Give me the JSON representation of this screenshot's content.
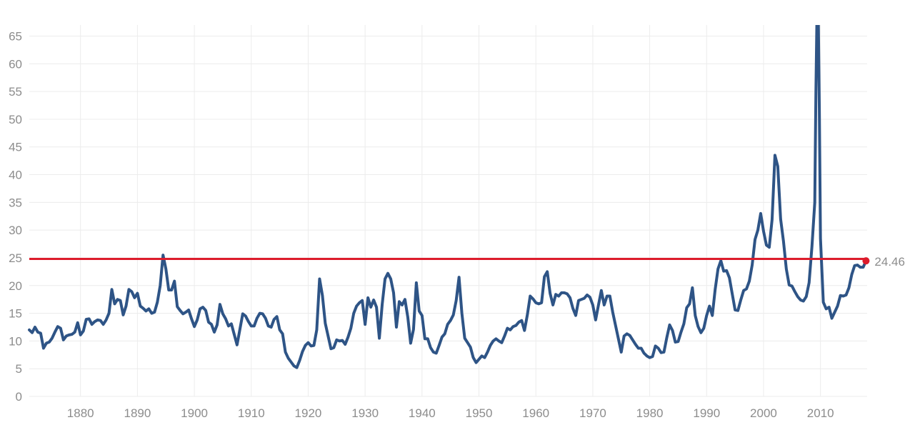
{
  "colors": {
    "series_line": "#2e5486",
    "reference_line": "#dd1c2c",
    "last_point": "#dd1c2c",
    "grid": "#ececec",
    "tick_text": "#8c8c8c",
    "background": "#ffffff"
  },
  "chart_data": {
    "type": "line",
    "title": "",
    "xlabel": "",
    "ylabel": "",
    "xlim": [
      1871,
      2018.2
    ],
    "ylim": [
      0,
      67
    ],
    "grid": true,
    "x_ticks": [
      1880,
      1890,
      1900,
      1910,
      1920,
      1930,
      1940,
      1950,
      1960,
      1970,
      1980,
      1990,
      2000,
      2010
    ],
    "x_tick_labels": [
      "1880",
      "1890",
      "1900",
      "1910",
      "1920",
      "1930",
      "1940",
      "1950",
      "1960",
      "1970",
      "1980",
      "1990",
      "2000",
      "2010"
    ],
    "y_ticks": [
      0,
      5,
      10,
      15,
      20,
      25,
      30,
      35,
      40,
      45,
      50,
      55,
      60,
      65
    ],
    "y_tick_labels": [
      "0",
      "5",
      "10",
      "15",
      "20",
      "25",
      "30",
      "35",
      "40",
      "45",
      "50",
      "55",
      "60",
      "65"
    ],
    "reference_line": {
      "y": 24.8
    },
    "last_value": {
      "x": 2018.0,
      "y": 24.46,
      "label": "24.46"
    },
    "series": [
      {
        "x": [
          1871.0,
          1871.5,
          1872.0,
          1872.5,
          1873.0,
          1873.5,
          1874.0,
          1874.5,
          1875.0,
          1875.5,
          1876.0,
          1876.5,
          1877.0,
          1877.5,
          1878.0,
          1878.5,
          1879.0,
          1879.5,
          1880.0,
          1880.5,
          1881.0,
          1881.5,
          1882.0,
          1882.5,
          1883.0,
          1883.5,
          1884.0,
          1884.5,
          1885.0,
          1885.5,
          1886.0,
          1886.5,
          1887.0,
          1887.5,
          1888.0,
          1888.5,
          1889.0,
          1889.5,
          1890.0,
          1890.5,
          1891.0,
          1891.5,
          1892.0,
          1892.5,
          1893.0,
          1893.5,
          1894.0,
          1894.5,
          1895.0,
          1895.5,
          1896.0,
          1896.5,
          1897.0,
          1897.5,
          1898.0,
          1898.5,
          1899.0,
          1899.5,
          1900.0,
          1900.5,
          1901.0,
          1901.5,
          1902.0,
          1902.5,
          1903.0,
          1903.5,
          1904.0,
          1904.5,
          1905.0,
          1905.5,
          1906.0,
          1906.5,
          1907.0,
          1907.5,
          1908.0,
          1908.5,
          1909.0,
          1909.5,
          1910.0,
          1910.5,
          1911.0,
          1911.5,
          1912.0,
          1912.5,
          1913.0,
          1913.5,
          1914.0,
          1914.5,
          1915.0,
          1915.5,
          1916.0,
          1916.5,
          1917.0,
          1917.5,
          1918.0,
          1918.5,
          1919.0,
          1919.5,
          1920.0,
          1920.5,
          1921.0,
          1921.5,
          1922.0,
          1922.5,
          1923.0,
          1923.5,
          1924.0,
          1924.5,
          1925.0,
          1925.5,
          1926.0,
          1926.5,
          1927.0,
          1927.5,
          1928.0,
          1928.5,
          1929.0,
          1929.5,
          1930.0,
          1930.5,
          1931.0,
          1931.5,
          1932.0,
          1932.5,
          1933.0,
          1933.5,
          1934.0,
          1934.5,
          1935.0,
          1935.5,
          1936.0,
          1936.5,
          1937.0,
          1937.5,
          1938.0,
          1938.5,
          1939.0,
          1939.5,
          1940.0,
          1940.5,
          1941.0,
          1941.5,
          1942.0,
          1942.5,
          1943.0,
          1943.5,
          1944.0,
          1944.5,
          1945.0,
          1945.5,
          1946.0,
          1946.5,
          1947.0,
          1947.5,
          1948.0,
          1948.5,
          1949.0,
          1949.5,
          1950.0,
          1950.5,
          1951.0,
          1951.5,
          1952.0,
          1952.5,
          1953.0,
          1953.5,
          1954.0,
          1954.5,
          1955.0,
          1955.5,
          1956.0,
          1956.5,
          1957.0,
          1957.5,
          1958.0,
          1958.5,
          1959.0,
          1959.5,
          1960.0,
          1960.5,
          1961.0,
          1961.5,
          1962.0,
          1962.5,
          1963.0,
          1963.5,
          1964.0,
          1964.5,
          1965.0,
          1965.5,
          1966.0,
          1966.5,
          1967.0,
          1967.5,
          1968.0,
          1968.5,
          1969.0,
          1969.5,
          1970.0,
          1970.5,
          1971.0,
          1971.5,
          1972.0,
          1972.5,
          1973.0,
          1973.5,
          1974.0,
          1974.5,
          1975.0,
          1975.5,
          1976.0,
          1976.5,
          1977.0,
          1977.5,
          1978.0,
          1978.5,
          1979.0,
          1979.5,
          1980.0,
          1980.5,
          1981.0,
          1981.5,
          1982.0,
          1982.5,
          1983.0,
          1983.5,
          1984.0,
          1984.5,
          1985.0,
          1985.5,
          1986.0,
          1986.5,
          1987.0,
          1987.5,
          1988.0,
          1988.5,
          1989.0,
          1989.5,
          1990.0,
          1990.5,
          1991.0,
          1991.5,
          1992.0,
          1992.5,
          1993.0,
          1993.5,
          1994.0,
          1994.5,
          1995.0,
          1995.5,
          1996.0,
          1996.5,
          1997.0,
          1997.5,
          1998.0,
          1998.5,
          1999.0,
          1999.5,
          2000.0,
          2000.5,
          2001.0,
          2001.5,
          2002.0,
          2002.5,
          2003.0,
          2003.5,
          2004.0,
          2004.5,
          2005.0,
          2005.5,
          2006.0,
          2006.5,
          2007.0,
          2007.5,
          2008.0,
          2008.5,
          2009.0,
          2009.2,
          2009.4,
          2009.6,
          2009.8,
          2010.0,
          2010.5,
          2011.0,
          2011.5,
          2012.0,
          2012.5,
          2013.0,
          2013.5,
          2014.0,
          2014.5,
          2015.0,
          2015.5,
          2016.0,
          2016.5,
          2017.0,
          2017.5,
          2018.0
        ],
        "y": [
          12.0,
          11.5,
          12.5,
          11.6,
          11.4,
          8.7,
          9.6,
          9.8,
          10.5,
          11.6,
          12.6,
          12.3,
          10.2,
          10.9,
          11.1,
          11.2,
          11.6,
          13.3,
          11.1,
          11.8,
          13.9,
          14.0,
          13.0,
          13.5,
          13.8,
          13.7,
          13.0,
          13.8,
          15.0,
          19.3,
          16.7,
          17.5,
          17.3,
          14.7,
          16.3,
          19.3,
          18.9,
          17.8,
          18.6,
          16.3,
          15.9,
          15.4,
          15.8,
          15.0,
          15.2,
          17.0,
          20.0,
          25.5,
          23.0,
          19.2,
          19.2,
          20.8,
          16.2,
          15.5,
          14.9,
          15.2,
          15.6,
          14.0,
          12.6,
          13.8,
          15.8,
          16.1,
          15.5,
          13.4,
          13.0,
          11.6,
          12.9,
          16.6,
          14.9,
          14.0,
          12.7,
          13.1,
          11.2,
          9.3,
          12.1,
          14.9,
          14.5,
          13.5,
          12.7,
          12.7,
          14.1,
          15.0,
          14.9,
          14.1,
          12.7,
          12.5,
          13.9,
          14.4,
          12.0,
          11.3,
          8.0,
          6.9,
          6.2,
          5.5,
          5.2,
          6.5,
          8.1,
          9.2,
          9.7,
          9.1,
          9.2,
          12.0,
          21.2,
          18.2,
          13.2,
          10.9,
          8.6,
          8.8,
          10.2,
          10.0,
          10.1,
          9.4,
          10.7,
          12.3,
          15.0,
          16.3,
          16.9,
          17.3,
          13.0,
          17.8,
          16.1,
          17.4,
          16.1,
          10.5,
          16.6,
          21.2,
          22.2,
          21.2,
          18.7,
          12.5,
          17.1,
          16.5,
          17.5,
          14.3,
          9.6,
          12.1,
          20.5,
          15.4,
          14.6,
          10.4,
          10.4,
          8.8,
          8.0,
          7.8,
          9.2,
          10.7,
          11.3,
          13.0,
          13.7,
          14.7,
          17.3,
          21.5,
          15.0,
          10.5,
          9.7,
          8.9,
          7.0,
          6.1,
          6.7,
          7.3,
          7.0,
          8.0,
          9.2,
          10.0,
          10.4,
          10.0,
          9.7,
          10.9,
          12.3,
          12.0,
          12.6,
          12.8,
          13.4,
          13.7,
          11.9,
          14.7,
          18.1,
          17.6,
          16.9,
          16.7,
          16.9,
          21.6,
          22.5,
          18.6,
          16.5,
          18.4,
          18.1,
          18.7,
          18.7,
          18.5,
          17.8,
          15.9,
          14.6,
          17.3,
          17.5,
          17.7,
          18.3,
          17.9,
          16.5,
          13.8,
          16.5,
          19.1,
          16.5,
          18.1,
          18.1,
          15.2,
          12.8,
          10.4,
          8.0,
          10.9,
          11.3,
          11.0,
          10.2,
          9.4,
          8.7,
          8.7,
          7.8,
          7.3,
          7.0,
          7.2,
          9.1,
          8.7,
          7.9,
          8.0,
          10.6,
          12.9,
          11.9,
          9.8,
          9.9,
          11.6,
          13.1,
          16.0,
          16.7,
          19.6,
          14.6,
          12.6,
          11.5,
          12.3,
          14.6,
          16.3,
          14.6,
          19.3,
          23.0,
          24.5,
          22.6,
          22.7,
          21.4,
          18.5,
          15.6,
          15.5,
          17.4,
          19.1,
          19.4,
          20.8,
          23.7,
          28.3,
          30.0,
          33.0,
          29.8,
          27.3,
          26.9,
          31.9,
          43.5,
          41.5,
          32.0,
          28.0,
          23.0,
          20.1,
          19.9,
          18.9,
          18.0,
          17.4,
          17.2,
          18.0,
          20.5,
          27.0,
          35.0,
          55.0,
          70.0,
          70.0,
          52.0,
          28.5,
          17.0,
          15.8,
          16.1,
          14.1,
          15.2,
          16.3,
          18.2,
          18.1,
          18.3,
          19.6,
          22.0,
          23.6,
          23.7,
          23.3,
          23.3,
          24.46
        ]
      }
    ]
  }
}
